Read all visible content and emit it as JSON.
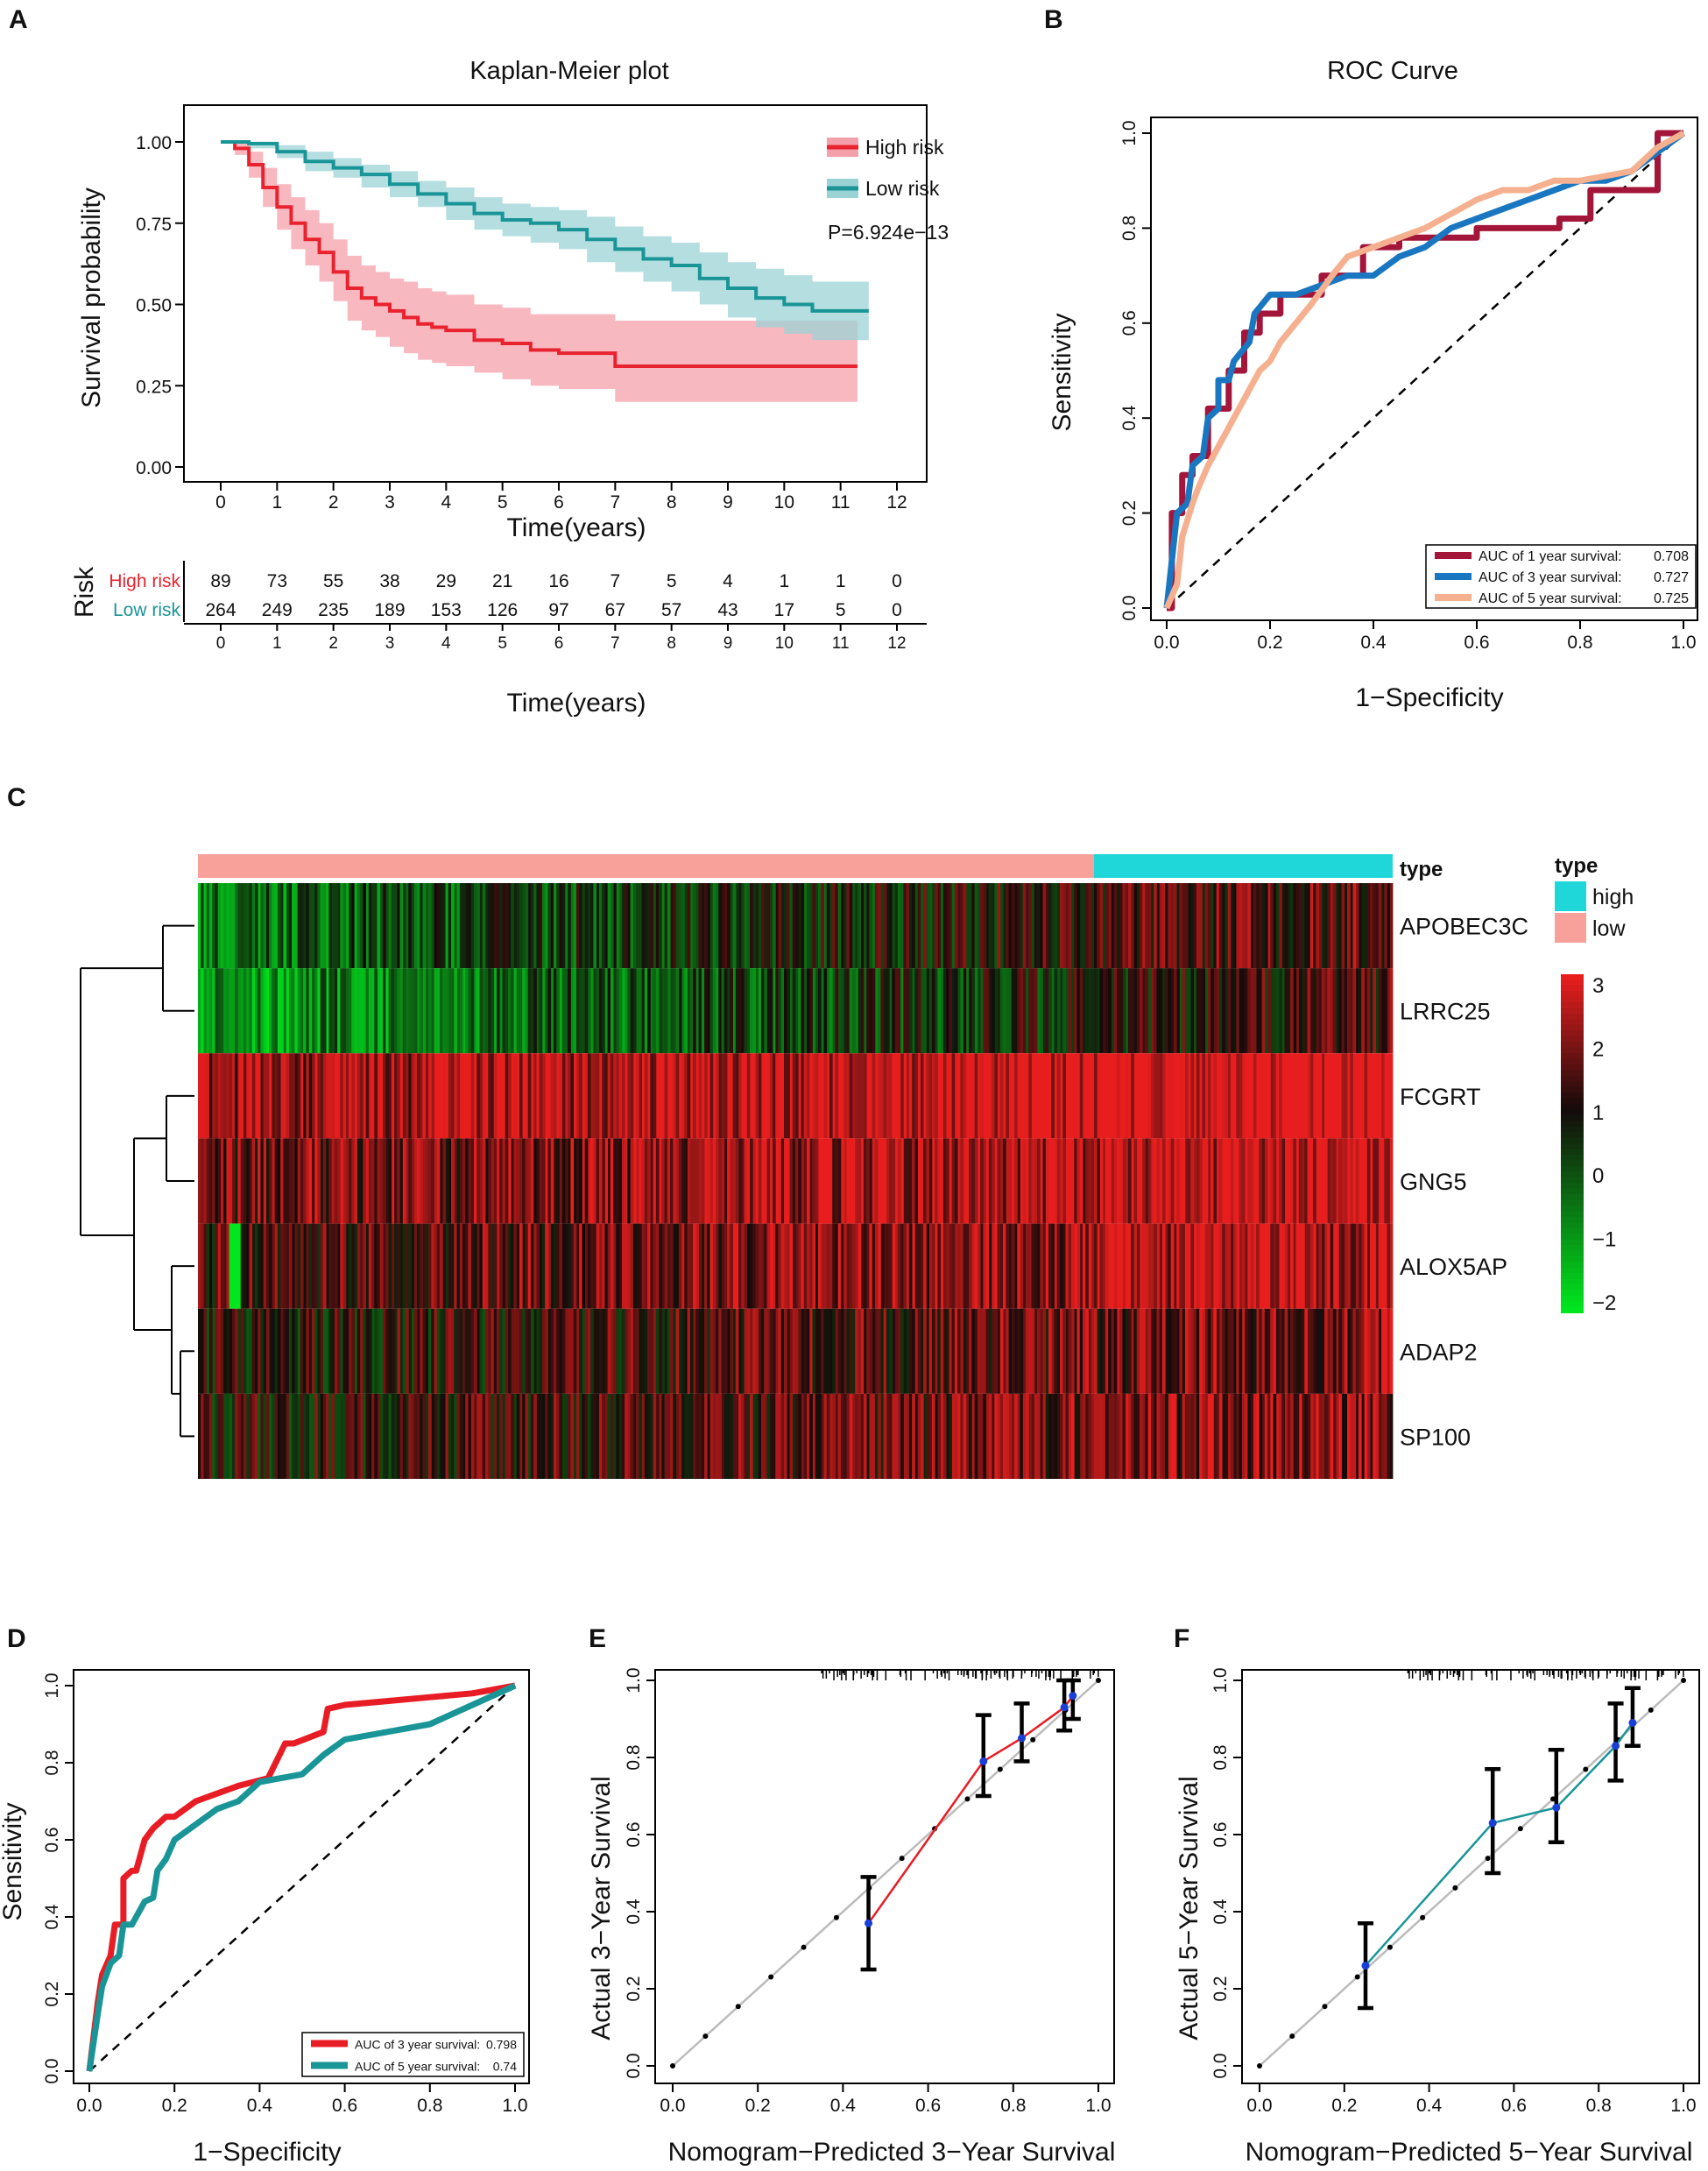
{
  "colors": {
    "red": "#e8232f",
    "red_band": "#f4a0ab",
    "teal": "#1a9597",
    "teal_band": "#9bd3d5",
    "roc1": "#a3163a",
    "roc3": "#1976c1",
    "roc5": "#f5b08f",
    "d3": "#e81c24",
    "d5": "#1a9597",
    "cal3": "#e81c24",
    "cal5": "#1a9597",
    "hm_high": "#e8201e",
    "hm_low": "#22e61e",
    "type_high": "#1fd6d8",
    "type_low": "#f8a09a"
  },
  "panels": {
    "a": "A",
    "b": "B",
    "c": "C",
    "d": "D",
    "e": "E",
    "f": "F"
  },
  "chart_data": [
    {
      "id": "A",
      "type": "line",
      "title": "Kaplan-Meier plot",
      "xlabel": "Time(years)",
      "ylabel": "Survival probability",
      "xlim": [
        0,
        12
      ],
      "ylim": [
        0,
        1
      ],
      "xticks": [
        "0",
        "1",
        "2",
        "3",
        "4",
        "5",
        "6",
        "7",
        "8",
        "9",
        "10",
        "11",
        "12"
      ],
      "yticks": [
        "0.00",
        "0.25",
        "0.50",
        "0.75",
        "1.00"
      ],
      "pvalue": "P=6.924e−13",
      "series": [
        {
          "name": "High risk",
          "color": "red",
          "x": [
            0,
            0.25,
            0.5,
            0.75,
            1,
            1.25,
            1.5,
            1.75,
            2,
            2.25,
            2.5,
            2.75,
            3,
            3.25,
            3.5,
            3.75,
            4,
            4.5,
            5,
            5.5,
            6,
            6.5,
            7,
            8,
            9,
            10,
            11,
            11.3
          ],
          "y": [
            1,
            0.98,
            0.93,
            0.86,
            0.8,
            0.75,
            0.7,
            0.66,
            0.6,
            0.55,
            0.52,
            0.5,
            0.48,
            0.46,
            0.44,
            0.43,
            0.42,
            0.39,
            0.38,
            0.36,
            0.35,
            0.35,
            0.31,
            0.31,
            0.31,
            0.31,
            0.31,
            0.31
          ],
          "lower": [
            1,
            0.96,
            0.89,
            0.8,
            0.73,
            0.67,
            0.62,
            0.57,
            0.51,
            0.45,
            0.42,
            0.4,
            0.37,
            0.35,
            0.33,
            0.32,
            0.31,
            0.29,
            0.27,
            0.25,
            0.24,
            0.24,
            0.2,
            0.2,
            0.2,
            0.2,
            0.2,
            0.2
          ],
          "upper": [
            1,
            1,
            0.97,
            0.92,
            0.87,
            0.83,
            0.79,
            0.75,
            0.7,
            0.65,
            0.62,
            0.6,
            0.58,
            0.57,
            0.55,
            0.54,
            0.53,
            0.5,
            0.49,
            0.47,
            0.47,
            0.47,
            0.45,
            0.45,
            0.45,
            0.45,
            0.45,
            0.45
          ]
        },
        {
          "name": "Low risk",
          "color": "teal",
          "x": [
            0,
            0.5,
            1,
            1.5,
            2,
            2.5,
            3,
            3.5,
            4,
            4.5,
            5,
            5.5,
            6,
            6.5,
            7,
            7.5,
            8,
            8.5,
            9,
            9.5,
            10,
            10.5,
            11,
            11.5
          ],
          "y": [
            1,
            0.995,
            0.97,
            0.94,
            0.92,
            0.9,
            0.87,
            0.84,
            0.81,
            0.78,
            0.76,
            0.75,
            0.73,
            0.7,
            0.67,
            0.64,
            0.62,
            0.58,
            0.55,
            0.52,
            0.5,
            0.48,
            0.48,
            0.48
          ],
          "lower": [
            1,
            0.98,
            0.95,
            0.91,
            0.89,
            0.86,
            0.83,
            0.8,
            0.76,
            0.73,
            0.71,
            0.69,
            0.67,
            0.63,
            0.6,
            0.57,
            0.54,
            0.5,
            0.46,
            0.43,
            0.41,
            0.39,
            0.39,
            0.38
          ],
          "upper": [
            1,
            1,
            0.99,
            0.97,
            0.95,
            0.93,
            0.91,
            0.88,
            0.86,
            0.83,
            0.81,
            0.8,
            0.79,
            0.77,
            0.74,
            0.71,
            0.69,
            0.66,
            0.63,
            0.61,
            0.59,
            0.57,
            0.57,
            0.57
          ]
        }
      ],
      "risk_table": {
        "title": "Risk",
        "xlabel": "Time(years)",
        "rows": [
          {
            "label": "High risk",
            "color": "red",
            "values": [
              "89",
              "73",
              "55",
              "38",
              "29",
              "21",
              "16",
              "7",
              "5",
              "4",
              "1",
              "1",
              "0"
            ]
          },
          {
            "label": "Low risk",
            "color": "teal",
            "values": [
              "264",
              "249",
              "235",
              "189",
              "153",
              "126",
              "97",
              "67",
              "57",
              "43",
              "17",
              "5",
              "0"
            ]
          }
        ]
      }
    },
    {
      "id": "B",
      "type": "line",
      "title": "ROC Curve",
      "xlabel": "1−Specificity",
      "ylabel": "Sensitivity",
      "xlim": [
        0,
        1
      ],
      "ylim": [
        0,
        1
      ],
      "xticks": [
        "0.0",
        "0.2",
        "0.4",
        "0.6",
        "0.8",
        "1.0"
      ],
      "yticks": [
        "0.0",
        "0.2",
        "0.4",
        "0.6",
        "0.8",
        "1.0"
      ],
      "series": [
        {
          "name": "AUC of 1 year survival:",
          "auc": "0.708",
          "color": "roc1",
          "x": [
            0,
            0.01,
            0.01,
            0.03,
            0.03,
            0.05,
            0.05,
            0.08,
            0.08,
            0.12,
            0.12,
            0.15,
            0.15,
            0.18,
            0.18,
            0.22,
            0.22,
            0.3,
            0.3,
            0.38,
            0.38,
            0.45,
            0.45,
            0.6,
            0.6,
            0.76,
            0.76,
            0.82,
            0.82,
            0.95,
            0.95,
            1
          ],
          "y": [
            0,
            0,
            0.2,
            0.2,
            0.28,
            0.28,
            0.32,
            0.32,
            0.42,
            0.42,
            0.5,
            0.5,
            0.58,
            0.58,
            0.62,
            0.62,
            0.66,
            0.66,
            0.7,
            0.7,
            0.76,
            0.76,
            0.78,
            0.78,
            0.8,
            0.8,
            0.82,
            0.82,
            0.88,
            0.88,
            1,
            1
          ]
        },
        {
          "name": "AUC of 3 year survival:",
          "auc": "0.727",
          "color": "roc3",
          "x": [
            0,
            0.01,
            0.02,
            0.04,
            0.05,
            0.07,
            0.08,
            0.1,
            0.1,
            0.12,
            0.13,
            0.16,
            0.17,
            0.2,
            0.25,
            0.3,
            0.35,
            0.4,
            0.45,
            0.5,
            0.55,
            0.6,
            0.65,
            0.7,
            0.75,
            0.8,
            0.85,
            0.9,
            0.95,
            1
          ],
          "y": [
            0,
            0.1,
            0.2,
            0.22,
            0.3,
            0.32,
            0.4,
            0.42,
            0.48,
            0.48,
            0.52,
            0.56,
            0.62,
            0.66,
            0.66,
            0.68,
            0.7,
            0.7,
            0.74,
            0.76,
            0.8,
            0.82,
            0.84,
            0.86,
            0.88,
            0.9,
            0.9,
            0.92,
            0.96,
            1
          ]
        },
        {
          "name": "AUC of 5 year survival:",
          "auc": "0.725",
          "color": "roc5",
          "x": [
            0,
            0.02,
            0.03,
            0.05,
            0.06,
            0.08,
            0.1,
            0.12,
            0.14,
            0.16,
            0.18,
            0.2,
            0.22,
            0.25,
            0.28,
            0.32,
            0.35,
            0.4,
            0.45,
            0.5,
            0.55,
            0.6,
            0.65,
            0.7,
            0.75,
            0.8,
            0.85,
            0.9,
            0.95,
            1
          ],
          "y": [
            0,
            0.05,
            0.15,
            0.22,
            0.25,
            0.3,
            0.34,
            0.38,
            0.42,
            0.46,
            0.5,
            0.52,
            0.56,
            0.6,
            0.64,
            0.7,
            0.74,
            0.76,
            0.78,
            0.8,
            0.83,
            0.86,
            0.88,
            0.88,
            0.9,
            0.9,
            0.91,
            0.92,
            0.97,
            1
          ]
        }
      ]
    },
    {
      "id": "C",
      "type": "heatmap",
      "genes": [
        "APOBEC3C",
        "LRRC25",
        "FCGRT",
        "GNG5",
        "ALOX5AP",
        "ADAP2",
        "SP100"
      ],
      "gene_means": [
        0.7,
        0.3,
        2.8,
        2.3,
        2.0,
        1.5,
        1.6
      ],
      "high_fraction": 0.25,
      "type_label": "type",
      "legend_title": "type",
      "legend_items": [
        {
          "label": "high",
          "color": "type_high"
        },
        {
          "label": "low",
          "color": "type_low"
        }
      ],
      "scale": {
        "min": -2,
        "max": 3,
        "ticks": [
          "3",
          "2",
          "1",
          "0",
          "−1",
          "−2"
        ]
      }
    },
    {
      "id": "D",
      "type": "line",
      "xlabel": "1−Specificity",
      "ylabel": "Sensitivity",
      "xlim": [
        0,
        1
      ],
      "ylim": [
        0,
        1
      ],
      "xticks": [
        "0.0",
        "0.2",
        "0.4",
        "0.6",
        "0.8",
        "1.0"
      ],
      "yticks": [
        "0.0",
        "0.2",
        "0.4",
        "0.6",
        "0.8",
        "1.0"
      ],
      "series": [
        {
          "name": "AUC of 3 year survival:",
          "auc": "0.798",
          "color": "d3",
          "x": [
            0,
            0.02,
            0.03,
            0.05,
            0.06,
            0.08,
            0.08,
            0.1,
            0.11,
            0.13,
            0.15,
            0.18,
            0.2,
            0.25,
            0.3,
            0.35,
            0.42,
            0.46,
            0.48,
            0.55,
            0.56,
            0.6,
            0.7,
            0.8,
            0.9,
            1
          ],
          "y": [
            0,
            0.18,
            0.25,
            0.3,
            0.38,
            0.38,
            0.5,
            0.52,
            0.52,
            0.6,
            0.63,
            0.66,
            0.66,
            0.7,
            0.72,
            0.74,
            0.76,
            0.85,
            0.85,
            0.88,
            0.94,
            0.95,
            0.96,
            0.97,
            0.98,
            1
          ]
        },
        {
          "name": "AUC of 5 year survival:",
          "auc": "0.74",
          "color": "d5",
          "x": [
            0,
            0.02,
            0.03,
            0.05,
            0.07,
            0.08,
            0.1,
            0.13,
            0.15,
            0.16,
            0.18,
            0.2,
            0.25,
            0.3,
            0.35,
            0.4,
            0.45,
            0.5,
            0.55,
            0.6,
            0.7,
            0.8,
            0.9,
            1
          ],
          "y": [
            0,
            0.15,
            0.22,
            0.28,
            0.3,
            0.38,
            0.38,
            0.44,
            0.45,
            0.52,
            0.55,
            0.6,
            0.64,
            0.68,
            0.7,
            0.75,
            0.76,
            0.77,
            0.82,
            0.86,
            0.88,
            0.9,
            0.95,
            1
          ]
        }
      ]
    },
    {
      "id": "E",
      "type": "line",
      "xlabel": "Nomogram−Predicted 3−Year Survival",
      "ylabel": "Actual 3−Year Survival",
      "xlim": [
        0,
        1
      ],
      "ylim": [
        0,
        1
      ],
      "xticks": [
        "0.0",
        "0.2",
        "0.4",
        "0.6",
        "0.8",
        "1.0"
      ],
      "yticks": [
        "0.0",
        "0.2",
        "0.4",
        "0.6",
        "0.8",
        "1.0"
      ],
      "points": {
        "x": [
          0.46,
          0.73,
          0.82,
          0.92,
          0.94
        ],
        "y": [
          0.37,
          0.79,
          0.85,
          0.93,
          0.96
        ],
        "lo": [
          0.25,
          0.7,
          0.79,
          0.87,
          0.9
        ],
        "hi": [
          0.49,
          0.91,
          0.94,
          1.0,
          1.0
        ]
      },
      "color": "cal3"
    },
    {
      "id": "F",
      "type": "line",
      "xlabel": "Nomogram−Predicted 5−Year Survival",
      "ylabel": "Actual 5−Year Survival",
      "xlim": [
        0,
        1
      ],
      "ylim": [
        0,
        1
      ],
      "xticks": [
        "0.0",
        "0.2",
        "0.4",
        "0.6",
        "0.8",
        "1.0"
      ],
      "yticks": [
        "0.0",
        "0.2",
        "0.4",
        "0.6",
        "0.8",
        "1.0"
      ],
      "points": {
        "x": [
          0.25,
          0.55,
          0.7,
          0.84,
          0.88
        ],
        "y": [
          0.26,
          0.63,
          0.67,
          0.83,
          0.89
        ],
        "lo": [
          0.15,
          0.5,
          0.58,
          0.74,
          0.83
        ],
        "hi": [
          0.37,
          0.77,
          0.82,
          0.94,
          0.98
        ]
      },
      "color": "cal5"
    }
  ]
}
